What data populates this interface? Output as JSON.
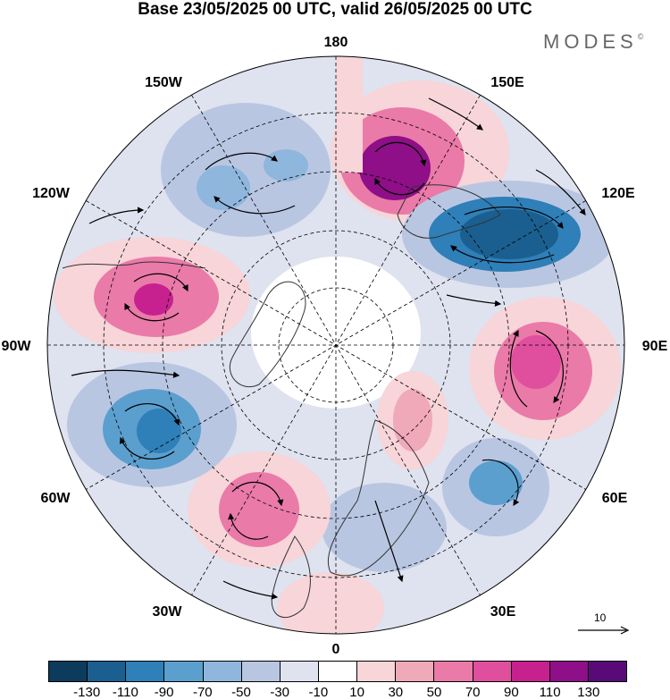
{
  "title": "Base 23/05/2025 00 UTC, valid 26/05/2025 00 UTC",
  "brand": "MODES",
  "brand_mark": "©",
  "longitude_labels": {
    "lon_180": "180",
    "lon_150e": "150E",
    "lon_120e": "120E",
    "lon_90e": "90E",
    "lon_60e": "60E",
    "lon_30e": "30E",
    "lon_0": "0",
    "lon_30w": "30W",
    "lon_60w": "60W",
    "lon_90w": "90W",
    "lon_120w": "120W",
    "lon_150w": "150W"
  },
  "reference_vector_label": "10",
  "colorbar": {
    "colors": [
      "#0d3b5c",
      "#1a5f8f",
      "#2f7fb8",
      "#5b9fcf",
      "#8fb6dc",
      "#b9c6e2",
      "#dfe2ef",
      "#ffffff",
      "#f7d5d8",
      "#f0a9b8",
      "#ea7aa8",
      "#e04f9e",
      "#c6218f",
      "#8e0f87",
      "#5a0a78"
    ],
    "tick_labels": [
      "-130",
      "-110",
      "-90",
      "-70",
      "-50",
      "-30",
      "-10",
      "10",
      "30",
      "50",
      "70",
      "90",
      "110",
      "130"
    ]
  },
  "map_colors": {
    "neg_strong": "#1a5f8f",
    "neg_mid": "#5b9fcf",
    "neg_weak": "#b9c6e2",
    "neg_faint": "#dfe2ef",
    "pos_faint": "#f7d5d8",
    "pos_weak": "#f0a9b8",
    "pos_mid": "#ea7aa8",
    "pos_strong": "#c6218f",
    "pos_max": "#8e0f87",
    "land_outline": "#333333",
    "grid": "#000000",
    "arrows": "#000000"
  }
}
